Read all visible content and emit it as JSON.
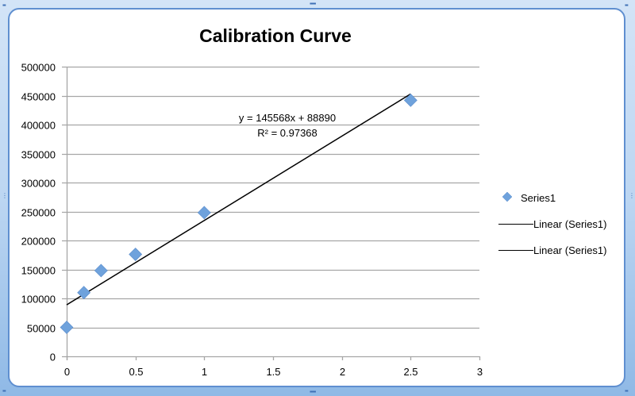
{
  "chart_data": {
    "type": "scatter",
    "title": "Calibration Curve",
    "xlabel": "",
    "ylabel": "",
    "xlim": [
      0,
      3
    ],
    "ylim": [
      0,
      500000
    ],
    "x_ticks": [
      "0",
      "0.5",
      "1",
      "1.5",
      "2",
      "2.5",
      "3"
    ],
    "y_ticks": [
      "0",
      "50000",
      "100000",
      "150000",
      "200000",
      "250000",
      "300000",
      "350000",
      "400000",
      "450000",
      "500000"
    ],
    "grid": "horizontal",
    "legend_position": "right",
    "series": [
      {
        "name": "Series1",
        "marker": "diamond",
        "color": "#6fa2dc",
        "x": [
          0,
          0.125,
          0.25,
          0.5,
          1,
          2.5
        ],
        "y": [
          50000,
          110000,
          148000,
          176000,
          248000,
          442000
        ]
      }
    ],
    "trendline": {
      "name": "Linear (Series1)",
      "type": "linear",
      "slope": 145568,
      "intercept": 88890,
      "x_range": [
        0,
        2.5
      ],
      "equation_label": "y = 145568x + 88890",
      "r2_label": "R² = 0.97368",
      "color": "#000000"
    },
    "legend": [
      "Series1",
      "Linear (Series1)",
      "Linear (Series1)"
    ]
  },
  "colors": {
    "frame_border": "#5f8fd0",
    "gridline": "#a6a6a6",
    "marker": "#6fa2dc"
  }
}
